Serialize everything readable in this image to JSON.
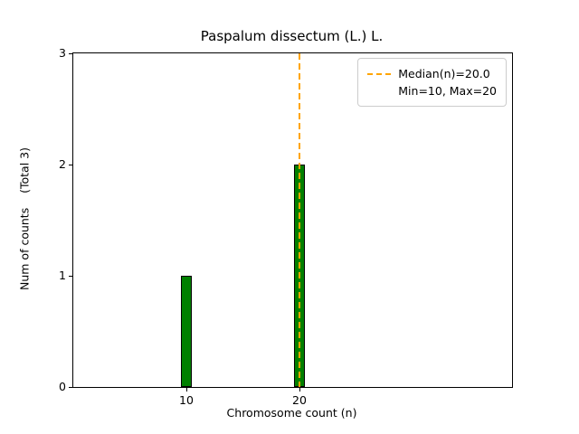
{
  "figure": {
    "background": "#ffffff"
  },
  "chart_data": {
    "type": "bar",
    "title": "Paspalum dissectum (L.) L.",
    "xlabel": "Chromosome count (n)",
    "ylabel": "Num of counts    (Total 3)",
    "x": [
      10,
      20
    ],
    "values": [
      1,
      2
    ],
    "bar_width": 1,
    "bar_color": "#008000",
    "bar_edge_color": "#000000",
    "xlim": [
      0,
      38.8
    ],
    "ylim": [
      0,
      3
    ],
    "xticks": [
      10,
      20
    ],
    "xtick_labels": [
      "10",
      "20"
    ],
    "yticks": [
      0,
      1,
      2,
      3
    ],
    "ytick_labels": [
      "0",
      "1",
      "2",
      "3"
    ],
    "median": 20.0,
    "median_line_color": "#FFA500",
    "grid": false,
    "legend": {
      "position": "upper right",
      "entries": [
        "Median(n)=20.0",
        "Min=10, Max=20"
      ]
    }
  }
}
